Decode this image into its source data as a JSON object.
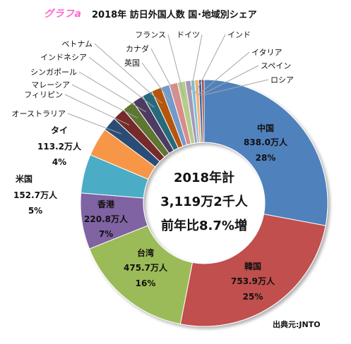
{
  "header": {
    "brand": "グラフa",
    "title": "2018年  訪日外国人数  国･地域別シェア"
  },
  "footer": {
    "source": "出典元:JNTO"
  },
  "center": {
    "line1": "2018年計",
    "line2": "3,119万2千人",
    "line3": "前年比8.7%増"
  },
  "colors": {
    "中国": "#4f81bd",
    "韓国": "#c0504d",
    "台湾": "#9bbb59",
    "香港": "#8064a2",
    "米国": "#4bacc6",
    "タイ": "#f79646",
    "オーストラリア": "#2c4d75",
    "フィリピン": "#772c2a",
    "マレーシア": "#5f7530",
    "シンガポール": "#4d3b62",
    "インドネシア": "#276a7c",
    "ベトナム": "#b65708",
    "英国": "#729acb",
    "カナダ": "#d98c8b",
    "フランス": "#b4cd8c",
    "ドイツ": "#a697b8",
    "インド": "#7fc3d6",
    "イタリア": "#f9ae6c",
    "スペイン": "#3b649c",
    "ロシア": "#9f3b38"
  },
  "chart_data": {
    "type": "pie",
    "title": "2018年  訪日外国人数  国･地域別シェア",
    "unit": "万人",
    "total": 3119.2,
    "slices": [
      {
        "name": "中国",
        "value": 838.0,
        "value_label": "838.0万人",
        "pct_label": "28%"
      },
      {
        "name": "韓国",
        "value": 753.9,
        "value_label": "753.9万人",
        "pct_label": "25%"
      },
      {
        "name": "台湾",
        "value": 475.7,
        "value_label": "475.7万人",
        "pct_label": "16%"
      },
      {
        "name": "香港",
        "value": 220.8,
        "value_label": "220.8万人",
        "pct_label": "7%"
      },
      {
        "name": "米国",
        "value": 152.7,
        "value_label": "152.7万人",
        "pct_label": "5%"
      },
      {
        "name": "タイ",
        "value": 113.2,
        "value_label": "113.2万人",
        "pct_label": "4%"
      },
      {
        "name": "オーストラリア",
        "value": 55.2
      },
      {
        "name": "フィリピン",
        "value": 50.4
      },
      {
        "name": "マレーシア",
        "value": 46.8
      },
      {
        "name": "シンガポール",
        "value": 43.7
      },
      {
        "name": "インドネシア",
        "value": 39.7
      },
      {
        "name": "ベトナム",
        "value": 38.9
      },
      {
        "name": "英国",
        "value": 33.4
      },
      {
        "name": "カナダ",
        "value": 33.0
      },
      {
        "name": "フランス",
        "value": 30.5
      },
      {
        "name": "ドイツ",
        "value": 21.5
      },
      {
        "name": "インド",
        "value": 15.4
      },
      {
        "name": "イタリア",
        "value": 15.0
      },
      {
        "name": "スペイン",
        "value": 11.9
      },
      {
        "name": "ロシア",
        "value": 9.5
      }
    ]
  }
}
